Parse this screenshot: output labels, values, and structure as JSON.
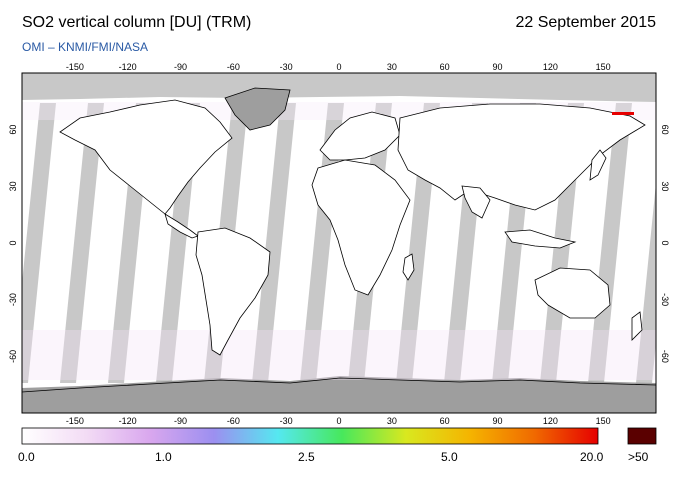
{
  "header": {
    "title": "SO2 vertical column [DU] (TRM)",
    "date": "22 September 2015",
    "credit": "OMI  –  KNMI/FMI/NASA"
  },
  "map": {
    "lon_ticks": [
      "-150",
      "-120",
      "-90",
      "-60",
      "-30",
      "0",
      "30",
      "60",
      "90",
      "120",
      "150"
    ],
    "lat_ticks": [
      "60",
      "30",
      "0",
      "-30",
      "-60"
    ],
    "lon_range": [
      -180,
      180
    ],
    "lat_range": [
      -90,
      90
    ],
    "colors": {
      "background": "#ffffff",
      "no_data": "#c8c8c8",
      "land_no_data": "#9e9e9e",
      "coastline": "#000000"
    }
  },
  "colorbar": {
    "labels": [
      "0.0",
      "1.0",
      "2.5",
      "5.0",
      "20.0",
      ">50"
    ],
    "stops": [
      "#ffffff",
      "#f3dcf5",
      "#d9a7ee",
      "#9c8ff0",
      "#55e8f0",
      "#47e85c",
      "#d9e81f",
      "#f5b400",
      "#f06a00",
      "#e60000"
    ],
    "over_color": "#5a0000"
  }
}
